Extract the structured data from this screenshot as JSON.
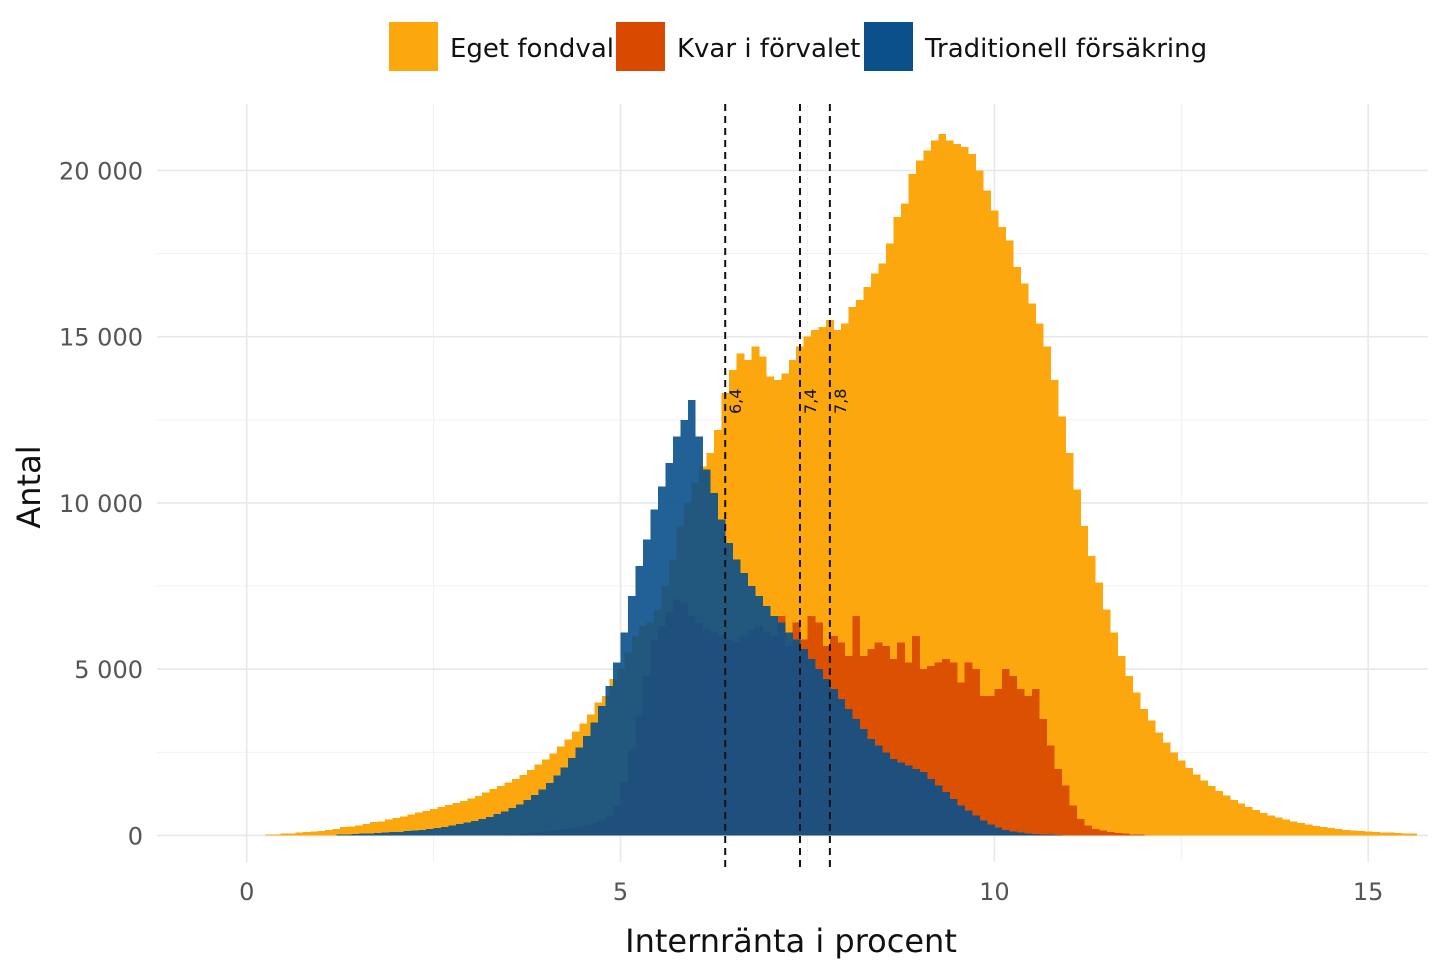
{
  "chart_data": {
    "type": "histogram",
    "xlabel": "Internränta i procent",
    "ylabel": "Antal",
    "xlim": [
      -1.2,
      15.8
    ],
    "ylim": [
      -800,
      22000
    ],
    "x_ticks": [
      0,
      5,
      10,
      15
    ],
    "x_tick_labels": [
      "0",
      "5",
      "10",
      "15"
    ],
    "y_ticks": [
      0,
      5000,
      10000,
      15000,
      20000
    ],
    "y_tick_labels": [
      "0",
      "5 000",
      "10 000",
      "15 000",
      "20 000"
    ],
    "grid": true,
    "legend_position": "top",
    "bin_width": 0.1,
    "series": [
      {
        "name": "Eget fondval",
        "color": "#FBA70D",
        "opacity": 1,
        "x_start": 0.25,
        "values": [
          30,
          30,
          50,
          50,
          80,
          100,
          120,
          130,
          170,
          200,
          250,
          270,
          300,
          340,
          400,
          420,
          480,
          520,
          570,
          630,
          690,
          730,
          800,
          850,
          910,
          970,
          1040,
          1110,
          1190,
          1290,
          1390,
          1480,
          1590,
          1690,
          1820,
          1970,
          2130,
          2290,
          2470,
          2670,
          2890,
          3120,
          3360,
          3640,
          4000,
          4200,
          4700,
          5000,
          5500,
          6000,
          6300,
          6400,
          6800,
          7500,
          8300,
          9300,
          10000,
          10600,
          11100,
          11500,
          12200,
          13300,
          14000,
          14500,
          14300,
          14700,
          14400,
          13800,
          13700,
          13900,
          14300,
          14700,
          15000,
          15200,
          15300,
          15500,
          15200,
          15400,
          15900,
          16100,
          16500,
          16900,
          17200,
          17800,
          18600,
          19000,
          19900,
          20300,
          20600,
          20900,
          21100,
          20900,
          20800,
          20700,
          20500,
          20000,
          19400,
          18800,
          18300,
          17900,
          17100,
          16600,
          16000,
          15400,
          14700,
          13700,
          12600,
          11500,
          10400,
          9300,
          8400,
          7600,
          6800,
          6100,
          5400,
          4800,
          4300,
          3800,
          3450,
          3100,
          2800,
          2500,
          2250,
          2030,
          1830,
          1650,
          1480,
          1330,
          1200,
          1070,
          960,
          860,
          760,
          680,
          600,
          540,
          480,
          420,
          370,
          330,
          290,
          250,
          220,
          190,
          170,
          150,
          130,
          120,
          100,
          90,
          80,
          70,
          60,
          50
        ]
      },
      {
        "name": "Kvar i förvalet",
        "color": "#D94A00",
        "opacity": 0.92,
        "x_start": 3.5,
        "values": [
          30,
          40,
          60,
          80,
          100,
          130,
          160,
          190,
          230,
          270,
          320,
          380,
          450,
          600,
          900,
          1600,
          2600,
          3600,
          4800,
          5900,
          6300,
          6700,
          7100,
          7000,
          6600,
          6400,
          6200,
          6100,
          6000,
          5900,
          5800,
          6000,
          6200,
          6300,
          6100,
          6000,
          6600,
          5700,
          6400,
          5900,
          6600,
          6400,
          5700,
          6000,
          5800,
          5400,
          6600,
          5400,
          5600,
          5800,
          5700,
          5300,
          5800,
          5200,
          6000,
          5000,
          5100,
          5200,
          5300,
          5200,
          4600,
          5200,
          5000,
          4200,
          4200,
          4400,
          5000,
          4800,
          4400,
          4200,
          4400,
          3500,
          2700,
          2000,
          1500,
          900,
          500,
          300,
          200,
          150,
          100,
          70,
          50,
          30,
          20
        ]
      },
      {
        "name": "Traditionell försäkring",
        "color": "#0B508B",
        "opacity": 0.9,
        "x_start": 1.2,
        "values": [
          20,
          30,
          40,
          50,
          60,
          70,
          80,
          100,
          110,
          130,
          150,
          170,
          200,
          230,
          260,
          300,
          340,
          390,
          440,
          500,
          560,
          640,
          720,
          820,
          930,
          1060,
          1210,
          1380,
          1580,
          1800,
          2050,
          2330,
          2640,
          2990,
          3400,
          3900,
          4500,
          5200,
          6100,
          7200,
          8100,
          8900,
          9800,
          10500,
          11200,
          12000,
          12500,
          13100,
          12000,
          11000,
          10300,
          9500,
          8800,
          8300,
          7900,
          7500,
          7200,
          6900,
          6600,
          6400,
          6100,
          5900,
          5600,
          5300,
          5000,
          4700,
          4400,
          4100,
          3800,
          3500,
          3200,
          2900,
          2700,
          2500,
          2300,
          2200,
          2100,
          2000,
          1900,
          1700,
          1500,
          1300,
          1100,
          900,
          750,
          600,
          450,
          330,
          240,
          170,
          120,
          90,
          60,
          40,
          30,
          20,
          10
        ]
      }
    ],
    "vertical_lines": [
      {
        "x": 6.4,
        "label": "6,4",
        "style": "dashed"
      },
      {
        "x": 7.4,
        "label": "7,4",
        "style": "dashed"
      },
      {
        "x": 7.8,
        "label": "7,8",
        "style": "dashed"
      }
    ]
  }
}
